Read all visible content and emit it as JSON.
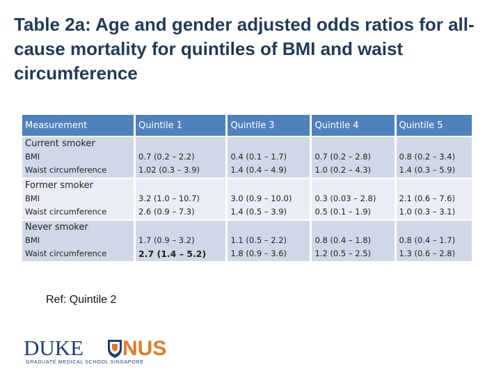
{
  "title": "Table 2a: Age and gender adjusted odds ratios for all-cause mortality for quintiles of BMI and waist circumference",
  "table": {
    "headers": [
      "Measurement",
      "Quintile 1",
      "Quintile 3",
      "Quintile 4",
      "Quintile 5"
    ],
    "groups": [
      {
        "label": "Current smoker",
        "rows": [
          {
            "label": "BMI",
            "values": [
              "0.7 (0.2 – 2.2)",
              "0.4 (0.1 – 1.7)",
              "0.7 (0.2 – 2.8)",
              "0.8 (0.2 – 3.4)"
            ]
          },
          {
            "label": "Waist circumference",
            "values": [
              "1.02 (0.3 – 3.9)",
              "1.4 (0.4 – 4.9)",
              "1.0 (0.2 – 4.3)",
              "1.4 (0.3 – 5.9)"
            ]
          }
        ]
      },
      {
        "label": "Former smoker",
        "rows": [
          {
            "label": "BMI",
            "values": [
              "3.2 (1.0 – 10.7)",
              "3.0 (0.9 – 10.0)",
              "0.3 (0.03 – 2.8)",
              "2.1 (0.6 – 7.6)"
            ]
          },
          {
            "label": "Waist circumference",
            "values": [
              "2.6 (0.9 – 7.3)",
              "1.4 (0.5 – 3.9)",
              "0.5 (0.1 – 1.9)",
              "1.0 (0.3 – 3.1)"
            ]
          }
        ]
      },
      {
        "label": "Never smoker",
        "rows": [
          {
            "label": "BMI",
            "values": [
              "1.7 (0.9 – 3.2)",
              "1.1 (0.5 – 2.2)",
              "0.8 (0.4 – 1.8)",
              "0.8 (0.4 – 1.7)"
            ]
          },
          {
            "label": "Waist circumference",
            "values": [
              "2.7 (1.4 – 5.2)",
              "1.8 (0.9 – 3.6)",
              "1.2 (0.5 – 2.5)",
              "1.3 (0.6 – 2.8)"
            ]
          }
        ]
      }
    ]
  },
  "ref_note": "Ref: Quintile 2",
  "logo": {
    "name_left": "DUKE",
    "name_right": "NUS",
    "tagline": "GRADUATE MEDICAL SCHOOL SINGAPORE",
    "colors": {
      "duke": "#1f3b77",
      "nus": "#e87722",
      "shield": "#1f3b77"
    }
  },
  "colors": {
    "title": "#1f3b57",
    "header_bg": "#4f81bd",
    "row_dark": "#d0d8e8",
    "row_light": "#e9edf4"
  }
}
